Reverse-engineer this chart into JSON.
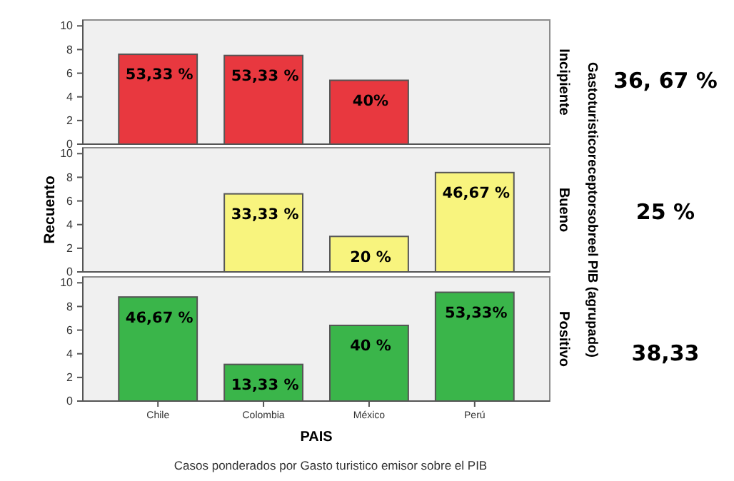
{
  "chart_data": [
    {
      "type": "bar",
      "y2label": "Incipiente",
      "categories": [
        "Chile",
        "Colombia",
        "México",
        "Perú"
      ],
      "values": [
        7.6,
        7.5,
        5.4,
        null
      ],
      "color": "#e8383f",
      "ylim": [
        0,
        10.5
      ],
      "yticks": [
        0,
        2,
        4,
        6,
        8,
        10
      ],
      "tick_labels": "y",
      "annotations": [
        "36, 67 %",
        {
          "text": "53,33 %",
          "x": "Chile",
          "y": 7.6
        },
        {
          "text": "53,33 %",
          "x": "Colombia",
          "y": 7.5
        },
        {
          "text": "40%",
          "x": "México",
          "y": 5.4
        }
      ]
    },
    {
      "type": "bar",
      "y2label": "Bueno",
      "categories": [
        "Chile",
        "Colombia",
        "México",
        "Perú"
      ],
      "values": [
        null,
        6.6,
        3.0,
        8.4
      ],
      "color": "#f8f47e",
      "ylim": [
        0,
        10.5
      ],
      "yticks": [
        0,
        2,
        4,
        6,
        8,
        10
      ],
      "tick_labels": "y",
      "ylabel": "Recuento",
      "annotations": [
        "25 %",
        "Gastoturisticoreceptorsobreel PIB (agrupado)",
        {
          "text": "33,33 %",
          "x": "Colombia",
          "y": 6.6
        },
        {
          "text": "20 %",
          "x": "México",
          "y": 3.0
        },
        {
          "text": "46,67 %",
          "x": "Perú",
          "y": 8.4
        }
      ]
    },
    {
      "type": "bar",
      "y2label": "Positivo",
      "categories": [
        "Chile",
        "Colombia",
        "México",
        "Perú"
      ],
      "values": [
        8.8,
        3.1,
        6.4,
        9.2
      ],
      "color": "#3ab54a",
      "ylim": [
        0,
        10.5
      ],
      "yticks": [
        0,
        2,
        4,
        6,
        8,
        10
      ],
      "xlabel": "PAIS",
      "annotations": [
        "38,33",
        "Casos ponderados por Gasto turistico emisor sobre el PIB",
        {
          "text": "46,67 %",
          "x": "Chile",
          "y": 8.8
        },
        {
          "text": "13,33 %",
          "x": "Colombia",
          "y": 3.1
        },
        {
          "text": "40 %",
          "x": "México",
          "y": 6.4
        },
        {
          "text": "53,33%",
          "x": "Perú",
          "y": 9.2
        }
      ]
    }
  ]
}
